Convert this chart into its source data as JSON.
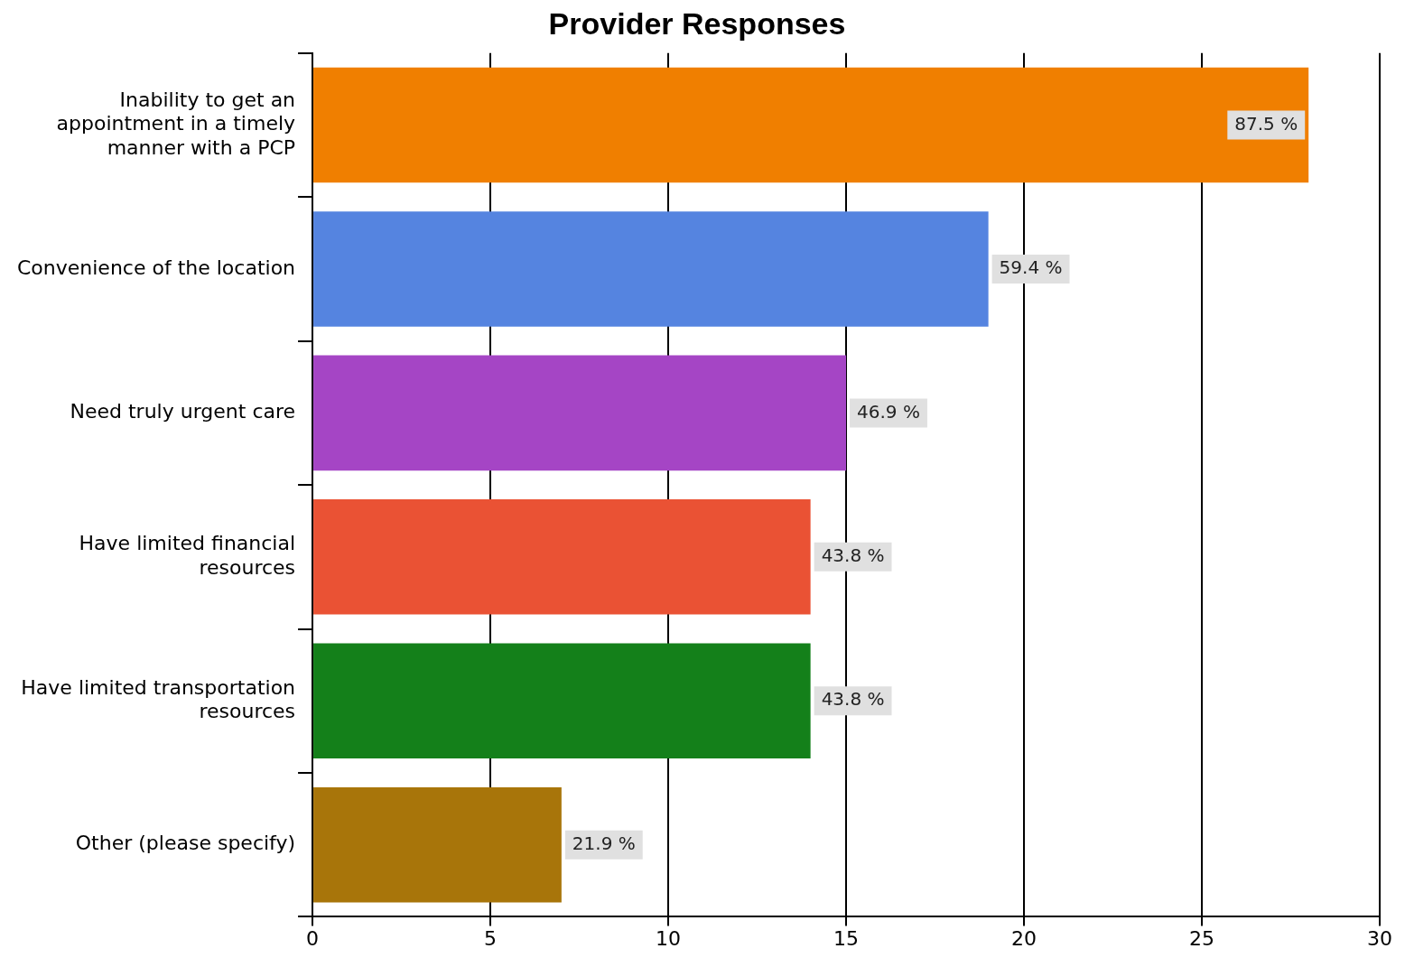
{
  "chart_data": {
    "type": "bar",
    "orientation": "horizontal",
    "title": "Provider Responses",
    "categories": [
      "Inability to get an appointment in a timely manner with a PCP",
      "Convenience of the location",
      "Need truly urgent care",
      "Have limited financial resources",
      "Have limited transportation resources",
      "Other (please specify)"
    ],
    "values": [
      28,
      19,
      15,
      14,
      14,
      7
    ],
    "colors": [
      "#f07f00",
      "#5584e0",
      "#a545c5",
      "#ea5234",
      "#14801a",
      "#a8750a"
    ],
    "annotations": [
      {
        "text": "87.5 %",
        "x": 28,
        "y": "Inability to get an appointment in a timely manner with a PCP"
      },
      {
        "text": "59.4 %",
        "x": 19,
        "y": "Convenience of the location"
      },
      {
        "text": "46.9 %",
        "x": 15,
        "y": "Need truly urgent care"
      },
      {
        "text": "43.8 %",
        "x": 14,
        "y": "Have limited financial resources"
      },
      {
        "text": "43.8 %",
        "x": 14,
        "y": "Have limited transportation resources"
      },
      {
        "text": "21.9 %",
        "x": 7,
        "y": "Other (please specify)"
      }
    ],
    "xlim": [
      0,
      30
    ],
    "xticks": [
      0,
      5,
      10,
      15,
      20,
      25,
      30
    ],
    "grid": "x",
    "legend": false
  }
}
